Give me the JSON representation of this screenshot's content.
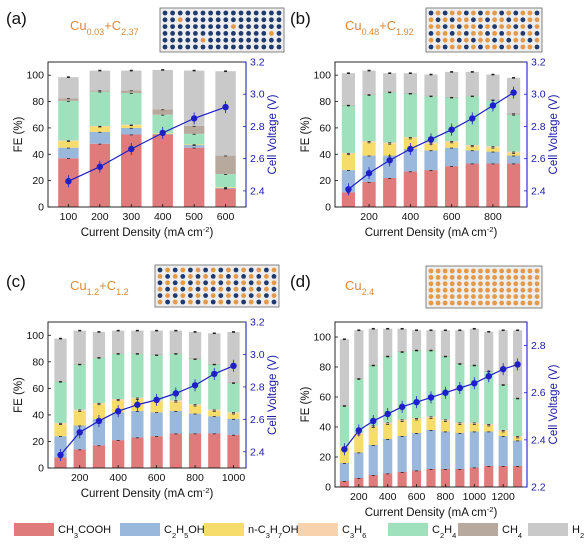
{
  "palette": {
    "CH3COOH": "#e07b7b",
    "C2H5OH": "#9ab8dc",
    "n-C3H7OH": "#f6dc6a",
    "C3H6": "#f7d2ad",
    "C2H4": "#9fe0bd",
    "CH4": "#b8a99e",
    "H2": "#c9c9c9",
    "voltage": "#1f1fc8",
    "label_orange": "#d98a3a",
    "dot_blue": "#1f3a6e",
    "dot_orange": "#e39a4a"
  },
  "legend": [
    {
      "key": "CH3COOH",
      "parts": [
        [
          "CH",
          ""
        ],
        [
          "3",
          "sub"
        ],
        [
          "COOH",
          ""
        ]
      ]
    },
    {
      "key": "C2H5OH",
      "parts": [
        [
          "C",
          ""
        ],
        [
          "2",
          "sub"
        ],
        [
          "H",
          ""
        ],
        [
          "5",
          "sub"
        ],
        [
          "OH",
          ""
        ]
      ]
    },
    {
      "key": "n-C3H7OH",
      "parts": [
        [
          "n-C",
          ""
        ],
        [
          "3",
          "sub"
        ],
        [
          "H",
          ""
        ],
        [
          "7",
          "sub"
        ],
        [
          "OH",
          ""
        ]
      ]
    },
    {
      "key": "C3H6",
      "parts": [
        [
          "C",
          ""
        ],
        [
          "3",
          "sub"
        ],
        [
          "H",
          ""
        ],
        [
          "6",
          "sub"
        ]
      ]
    },
    {
      "key": "C2H4",
      "parts": [
        [
          "C",
          ""
        ],
        [
          "2",
          "sub"
        ],
        [
          "H",
          ""
        ],
        [
          "4",
          "sub"
        ]
      ]
    },
    {
      "key": "CH4",
      "parts": [
        [
          "CH",
          ""
        ],
        [
          "4",
          "sub"
        ]
      ]
    },
    {
      "key": "H2",
      "parts": [
        [
          "H",
          ""
        ],
        [
          "2",
          "sub"
        ]
      ]
    }
  ],
  "chart_data": [
    {
      "type": "bar",
      "panel_label": "(a)",
      "catalyst": [
        [
          "Cu",
          ""
        ],
        [
          "0.03",
          "sub"
        ],
        [
          "+C",
          ""
        ],
        [
          "2.37",
          "sub"
        ]
      ],
      "dot_pattern": "mostly_blue",
      "xlabel": "Current Density (mA cm",
      "xlabel_sup": "-2",
      "ylabel": "FE (%)",
      "y2label": "Cell Voltage (V)",
      "categories": [
        100,
        200,
        300,
        400,
        500,
        600
      ],
      "xticks": [
        "100",
        "200",
        "300",
        "400",
        "500",
        "600"
      ],
      "ylim": [
        0,
        110
      ],
      "yticks": [
        0,
        20,
        40,
        60,
        80,
        100
      ],
      "y2lim": [
        2.3,
        3.2
      ],
      "y2ticks": [
        "2.4",
        "2.6",
        "2.8",
        "3.0",
        "3.2"
      ],
      "series": {
        "CH3COOH": [
          37,
          48,
          55,
          55,
          45,
          14
        ],
        "C2H5OH": [
          8,
          9,
          5,
          0.5,
          2,
          0.5
        ],
        "n-C3H7OH": [
          5,
          4,
          2,
          0.5,
          0.5,
          0.5
        ],
        "C3H6": [
          0.5,
          0.5,
          0.5,
          0,
          0,
          0
        ],
        "C2H4": [
          30,
          26,
          24,
          14,
          8,
          10
        ],
        "CH4": [
          2,
          1,
          2,
          4,
          6,
          14
        ],
        "H2": [
          16,
          15,
          15,
          30,
          42,
          64
        ]
      },
      "voltage": [
        2.46,
        2.55,
        2.66,
        2.76,
        2.85,
        2.92
      ]
    },
    {
      "type": "bar",
      "panel_label": "(b)",
      "catalyst": [
        [
          "Cu",
          ""
        ],
        [
          "0.48",
          "sub"
        ],
        [
          "+C",
          ""
        ],
        [
          "1.92",
          "sub"
        ]
      ],
      "dot_pattern": "mixed_light",
      "xlabel": "Current Density (mA cm",
      "xlabel_sup": "-2",
      "ylabel": "FE (%)",
      "y2label": "Cell Voltage (V)",
      "categories": [
        100,
        200,
        300,
        400,
        500,
        600,
        700,
        800,
        900
      ],
      "xticks": [
        "200",
        "400",
        "600",
        "800"
      ],
      "xtick_values": [
        200,
        400,
        600,
        800
      ],
      "ylim": [
        0,
        110
      ],
      "yticks": [
        0,
        20,
        40,
        60,
        80,
        100
      ],
      "y2lim": [
        2.3,
        3.2
      ],
      "y2ticks": [
        "2.4",
        "2.6",
        "2.8",
        "3.0",
        "3.2"
      ],
      "series": {
        "CH3COOH": [
          11,
          19,
          22,
          27,
          28,
          31,
          33,
          33,
          33
        ],
        "C2H5OH": [
          17,
          20,
          17,
          17,
          15,
          14,
          10,
          9,
          6
        ],
        "n-C3H7OH": [
          12,
          10,
          9,
          8,
          5,
          4,
          3,
          3,
          2
        ],
        "C3H6": [
          1,
          1,
          1,
          1,
          1,
          1,
          1,
          1,
          1
        ],
        "C2H4": [
          36,
          35,
          38,
          33,
          35,
          33,
          37,
          35,
          28
        ],
        "CH4": [
          0.5,
          0.5,
          0.5,
          0.5,
          0.5,
          0.5,
          0.5,
          0.5,
          1
        ],
        "H2": [
          24,
          18,
          14,
          15,
          16,
          19,
          18,
          19,
          27
        ]
      },
      "voltage": [
        2.41,
        2.51,
        2.59,
        2.66,
        2.72,
        2.78,
        2.85,
        2.93,
        3.01
      ]
    },
    {
      "type": "bar",
      "panel_label": "(c)",
      "catalyst": [
        [
          "Cu",
          ""
        ],
        [
          "1.2",
          "sub"
        ],
        [
          "+C",
          ""
        ],
        [
          "1.2",
          "sub"
        ]
      ],
      "dot_pattern": "checker",
      "xlabel": "Current Density (mA cm",
      "xlabel_sup": "-2",
      "ylabel": "FE (%)",
      "y2label": "Cell Voltage (V)",
      "categories": [
        100,
        200,
        300,
        400,
        500,
        600,
        700,
        800,
        900,
        1000
      ],
      "xticks": [
        "200",
        "400",
        "600",
        "800",
        "1000"
      ],
      "xtick_values": [
        200,
        400,
        600,
        800,
        1000
      ],
      "ylim": [
        0,
        110
      ],
      "yticks": [
        0,
        20,
        40,
        60,
        80,
        100
      ],
      "y2lim": [
        2.3,
        3.2
      ],
      "y2ticks": [
        "2.4",
        "2.6",
        "2.8",
        "3.0",
        "3.2"
      ],
      "series": {
        "CH3COOH": [
          8,
          14,
          17,
          21,
          23,
          24,
          26,
          26,
          26,
          25
        ],
        "C2H5OH": [
          16,
          18,
          20,
          21,
          20,
          18,
          17,
          15,
          13,
          12
        ],
        "n-C3H7OH": [
          9,
          11,
          11,
          9,
          9,
          8,
          7,
          6,
          4,
          4
        ],
        "C3H6": [
          1,
          1,
          1,
          1,
          1,
          1,
          1,
          1,
          1,
          1
        ],
        "C2H4": [
          31,
          34,
          34,
          34,
          33,
          34,
          35,
          34,
          34,
          22
        ],
        "CH4": [
          0.5,
          0.5,
          0.5,
          0.5,
          0.5,
          0.5,
          0.5,
          0.5,
          0.5,
          0.5
        ],
        "H2": [
          32,
          25,
          19,
          17,
          17,
          18,
          17,
          20,
          23,
          38
        ]
      },
      "voltage": [
        2.38,
        2.52,
        2.59,
        2.65,
        2.69,
        2.72,
        2.76,
        2.81,
        2.88,
        2.93
      ]
    },
    {
      "type": "bar",
      "panel_label": "(d)",
      "catalyst": [
        [
          "Cu",
          ""
        ],
        [
          "2.4",
          "sub"
        ]
      ],
      "dot_pattern": "all_orange",
      "xlabel": "Current Density (mA cm",
      "xlabel_sup": "-2",
      "ylabel": "FE (%)",
      "y2label": "Cell Voltage (V)",
      "categories": [
        100,
        200,
        300,
        400,
        500,
        600,
        700,
        800,
        900,
        1000,
        1100,
        1200,
        1300
      ],
      "xticks": [
        "200",
        "400",
        "600",
        "800",
        "1000",
        "1200"
      ],
      "xtick_values": [
        200,
        400,
        600,
        800,
        1000,
        1200
      ],
      "ylim": [
        0,
        110
      ],
      "yticks": [
        0,
        20,
        40,
        60,
        80,
        100
      ],
      "y2lim": [
        2.2,
        2.9
      ],
      "y2ticks": [
        "2.2",
        "2.4",
        "2.6",
        "2.8"
      ],
      "series": {
        "CH3COOH": [
          4,
          6,
          8,
          9,
          10,
          11,
          12,
          12,
          12,
          13,
          14,
          14,
          14
        ],
        "C2H5OH": [
          12,
          17,
          20,
          23,
          24,
          25,
          26,
          25,
          24,
          24,
          23,
          20,
          17
        ],
        "n-C3H7OH": [
          10,
          12,
          12,
          10,
          10,
          9,
          8,
          7,
          6,
          5,
          4,
          3,
          2
        ],
        "C3H6": [
          1,
          1,
          1,
          1,
          1,
          1,
          1,
          1,
          1,
          1,
          1,
          1,
          1
        ],
        "C2H4": [
          27,
          36,
          40,
          44,
          45,
          45,
          44,
          42,
          39,
          38,
          35,
          30,
          25
        ],
        "CH4": [
          0.5,
          0.5,
          0.5,
          0.5,
          0.5,
          0.5,
          0.5,
          0.5,
          0.5,
          0.5,
          0.5,
          0.5,
          0.5
        ],
        "H2": [
          44,
          32,
          24,
          18,
          15,
          13,
          13,
          17,
          22,
          24,
          26,
          36,
          45
        ]
      },
      "voltage": [
        2.36,
        2.44,
        2.48,
        2.51,
        2.54,
        2.56,
        2.58,
        2.6,
        2.62,
        2.64,
        2.67,
        2.7,
        2.72
      ]
    }
  ]
}
